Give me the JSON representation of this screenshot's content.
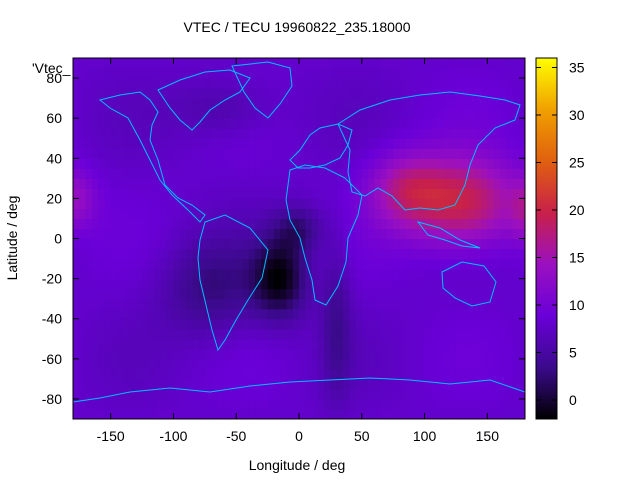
{
  "chart_data": {
    "type": "heatmap",
    "title": "VTEC / TECU 19960822_235.18000",
    "xlabel": "Longitude / deg",
    "ylabel": "Latitude / deg",
    "key_label": "'Vtec_",
    "xlim": [
      -180,
      180
    ],
    "ylim": [
      -90,
      90
    ],
    "x_ticks": [
      -150,
      -100,
      -50,
      0,
      50,
      100,
      150
    ],
    "y_ticks": [
      -80,
      -60,
      -40,
      -20,
      0,
      20,
      40,
      60,
      80
    ],
    "colorbar": {
      "min": -2,
      "max": 36,
      "ticks": [
        0,
        5,
        10,
        15,
        20,
        25,
        30,
        35
      ],
      "palette": [
        "#000000",
        "#3b0a8c",
        "#6a00d8",
        "#9b10c0",
        "#c8204a",
        "#e0600f",
        "#f0a000",
        "#ffff00"
      ]
    },
    "background_value": 8,
    "features": [
      {
        "lon": 130,
        "lat": 18,
        "value": 20,
        "spread_lon": 45,
        "spread_lat": 22
      },
      {
        "lon": 85,
        "lat": 25,
        "value": 15,
        "spread_lon": 30,
        "spread_lat": 18
      },
      {
        "lon": -180,
        "lat": 20,
        "value": 14,
        "spread_lon": 18,
        "spread_lat": 15
      },
      {
        "lon": 180,
        "lat": 15,
        "value": 13,
        "spread_lon": 12,
        "spread_lat": 15
      },
      {
        "lon": -15,
        "lat": -20,
        "value": -1,
        "spread_lon": 22,
        "spread_lat": 20
      },
      {
        "lon": 0,
        "lat": 5,
        "value": 3,
        "spread_lon": 20,
        "spread_lat": 12
      },
      {
        "lon": -70,
        "lat": -25,
        "value": 3,
        "spread_lon": 40,
        "spread_lat": 25
      },
      {
        "lon": 30,
        "lat": -40,
        "value": 4,
        "spread_lon": 12,
        "spread_lat": 40
      },
      {
        "lon": -60,
        "lat": 65,
        "value": 5,
        "spread_lon": 40,
        "spread_lat": 15
      }
    ],
    "coastline_color": "#00bfff",
    "grid": false
  }
}
